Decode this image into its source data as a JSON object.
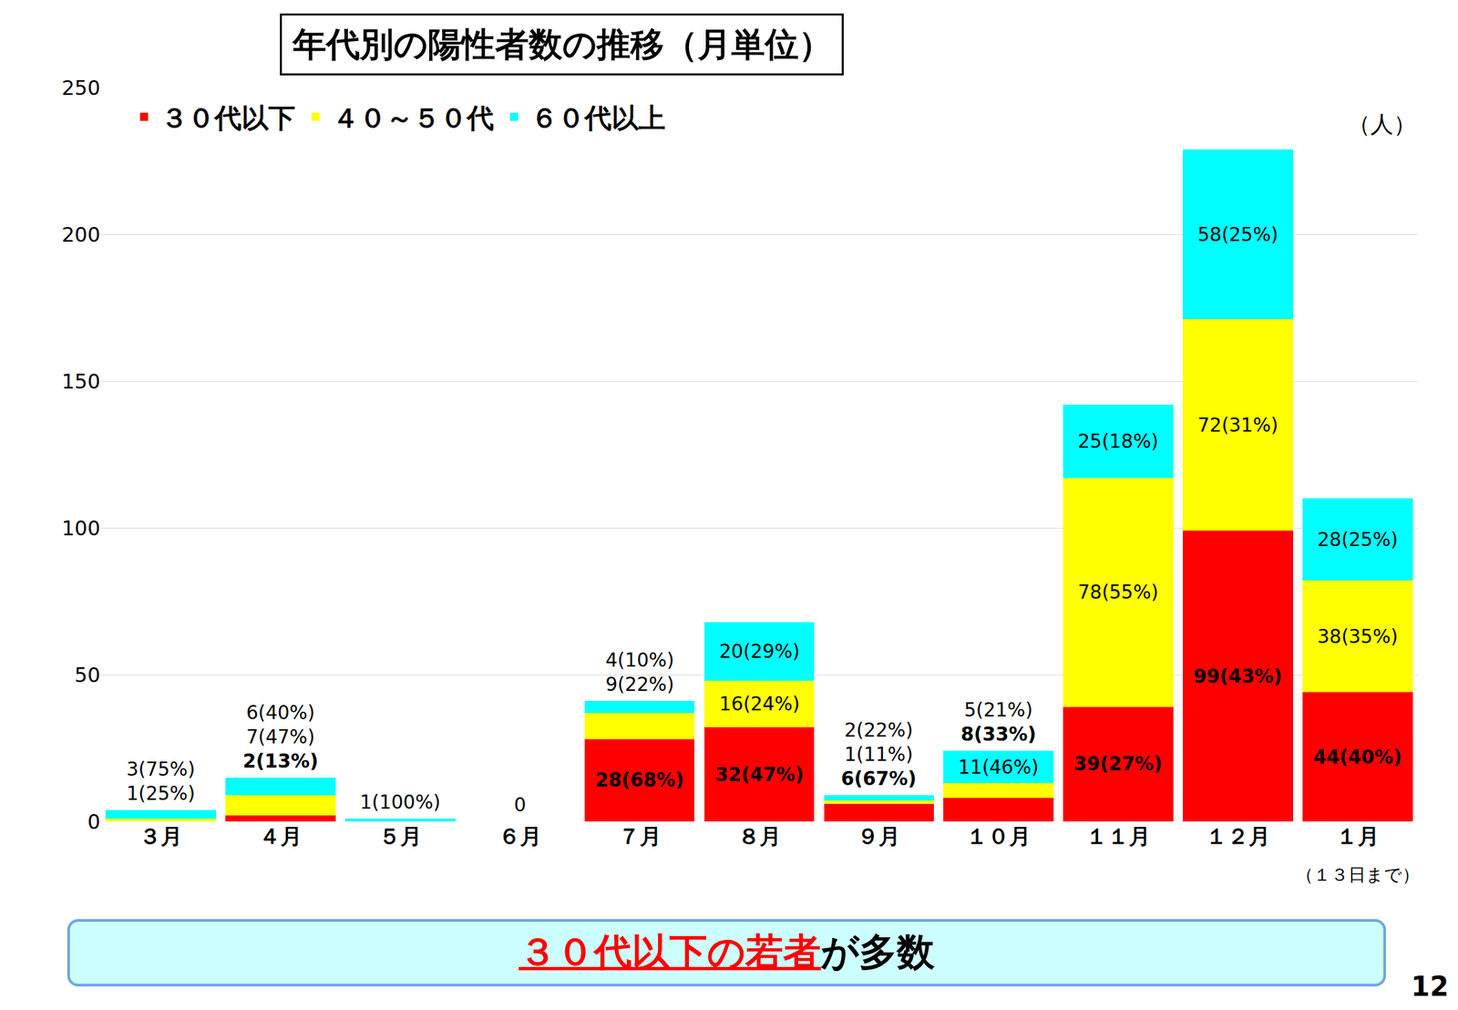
{
  "chart_data": {
    "type": "bar",
    "title": "年代別の陽性者数の推移（月単位）",
    "ylabel": "（人）",
    "categories": [
      "３月",
      "４月",
      "５月",
      "６月",
      "７月",
      "８月",
      "９月",
      "１０月",
      "１１月",
      "１２月",
      "１月"
    ],
    "series": [
      {
        "name": "３０代以下",
        "color": "#ff0000",
        "values": [
          0,
          2,
          0,
          0,
          28,
          32,
          6,
          8,
          39,
          99,
          44
        ],
        "value_labels": [
          null,
          "2(13%)",
          null,
          null,
          "28(68%)",
          "32(47%)",
          "6(67%)",
          "8(33%)",
          "39(27%)",
          "99(43%)",
          "44(40%)"
        ]
      },
      {
        "name": "４０～５０代",
        "color": "#ffff00",
        "values": [
          1,
          7,
          0,
          0,
          9,
          16,
          1,
          5,
          78,
          72,
          38
        ],
        "value_labels": [
          "1(25%)",
          "7(47%)",
          null,
          null,
          "9(22%)",
          "16(24%)",
          "1(11%)",
          "5(21%)",
          "78(55%)",
          "72(31%)",
          "38(35%)"
        ]
      },
      {
        "name": "６０代以上",
        "color": "#00ffff",
        "values": [
          3,
          6,
          1,
          0,
          4,
          20,
          2,
          11,
          25,
          58,
          28
        ],
        "value_labels": [
          "3(75%)",
          "6(40%)",
          "1(100%)",
          null,
          "4(10%)",
          "20(29%)",
          "2(22%)",
          "11(46%)",
          "25(18%)",
          "58(25%)",
          "28(25%)"
        ]
      }
    ],
    "annotations": [
      {
        "text": "0",
        "category": "６月"
      },
      {
        "text": "（１３日まで）",
        "category": "１月"
      }
    ],
    "ylim": [
      0,
      250
    ],
    "yticks": [
      0,
      50,
      100,
      150,
      200,
      250
    ],
    "grid": true,
    "stacked": true,
    "data_labels": true,
    "legend": "top left"
  },
  "footer": {
    "highlight": "３０代以下の若者",
    "rest": "が多数"
  },
  "page": "12"
}
